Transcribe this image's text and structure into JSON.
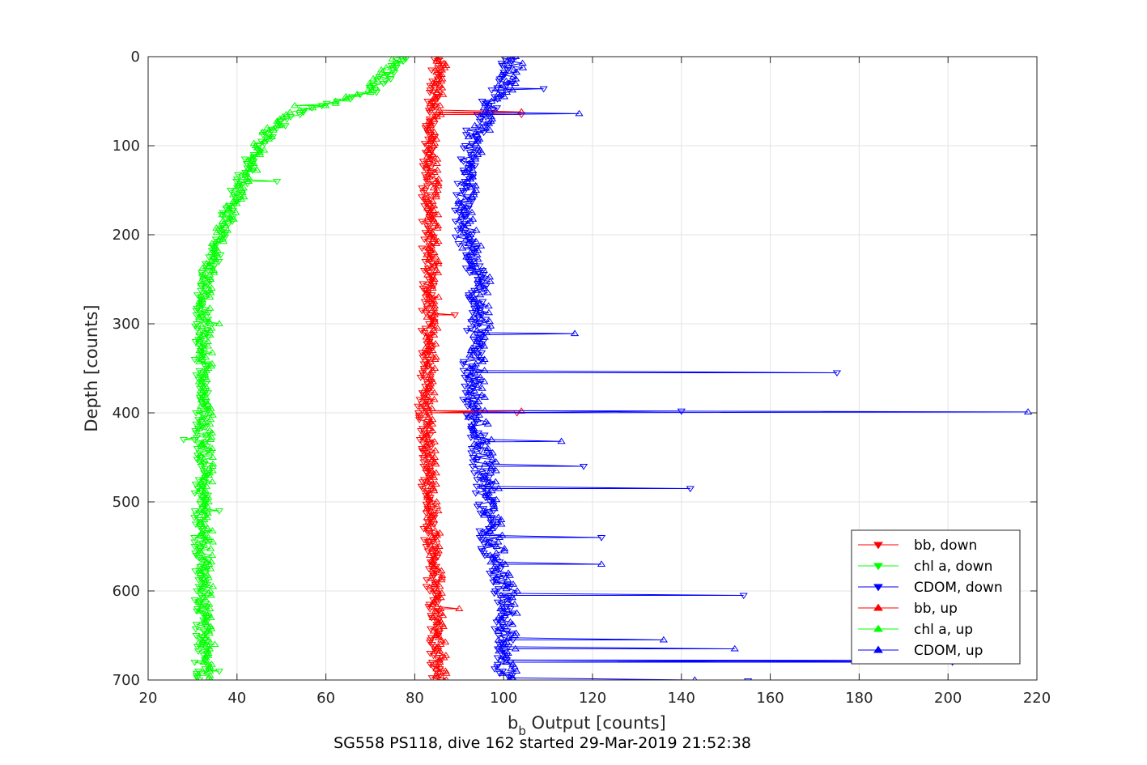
{
  "chart_data": {
    "type": "line",
    "title": "SG558 PS118, dive 162 started 29-Mar-2019 21:52:38",
    "xlabel_main": "b",
    "xlabel_sub": "b",
    "xlabel_rest": " Output [counts]",
    "ylabel": "Depth [counts]",
    "xlim": [
      20,
      220
    ],
    "ylim": [
      0,
      700
    ],
    "y_reversed": true,
    "grid": true,
    "legend_position": "bottom-right",
    "xticks": [
      20,
      40,
      60,
      80,
      100,
      120,
      140,
      160,
      180,
      200,
      220
    ],
    "yticks": [
      0,
      100,
      200,
      300,
      400,
      500,
      600,
      700
    ],
    "series": [
      {
        "name": "bb, down",
        "color": "#ff0000",
        "marker": "triangle-down",
        "profile": [
          [
            0,
            85
          ],
          [
            50,
            84
          ],
          [
            100,
            83
          ],
          [
            150,
            83
          ],
          [
            200,
            83
          ],
          [
            300,
            83
          ],
          [
            400,
            82
          ],
          [
            500,
            83
          ],
          [
            600,
            84
          ],
          [
            700,
            85
          ]
        ],
        "spikes": [
          [
            65,
            104
          ],
          [
            290,
            89
          ],
          [
            400,
            103
          ]
        ]
      },
      {
        "name": "chl a, down",
        "color": "#00ff00",
        "marker": "triangle-down",
        "profile": [
          [
            0,
            78
          ],
          [
            20,
            74
          ],
          [
            40,
            70
          ],
          [
            50,
            62
          ],
          [
            60,
            55
          ],
          [
            80,
            49
          ],
          [
            100,
            44
          ],
          [
            130,
            42
          ],
          [
            160,
            39
          ],
          [
            200,
            37
          ],
          [
            250,
            33
          ],
          [
            300,
            32
          ],
          [
            400,
            32
          ],
          [
            500,
            32
          ],
          [
            600,
            32
          ],
          [
            700,
            32
          ]
        ],
        "spikes": [
          [
            140,
            49
          ],
          [
            430,
            28
          ],
          [
            510,
            36
          ],
          [
            690,
            36
          ]
        ]
      },
      {
        "name": "CDOM, down",
        "color": "#0000ff",
        "marker": "triangle-down",
        "profile": [
          [
            0,
            101
          ],
          [
            30,
            100
          ],
          [
            60,
            96
          ],
          [
            100,
            92
          ],
          [
            150,
            91
          ],
          [
            200,
            91
          ],
          [
            250,
            94
          ],
          [
            300,
            94
          ],
          [
            350,
            93
          ],
          [
            400,
            93
          ],
          [
            450,
            95
          ],
          [
            500,
            96
          ],
          [
            550,
            97
          ],
          [
            600,
            100
          ],
          [
            650,
            100
          ],
          [
            700,
            100
          ]
        ],
        "spikes": [
          [
            36,
            109
          ],
          [
            355,
            175
          ],
          [
            398,
            140
          ],
          [
            460,
            118
          ],
          [
            485,
            142
          ],
          [
            540,
            122
          ],
          [
            605,
            154
          ],
          [
            680,
            201
          ],
          [
            701,
            155
          ]
        ]
      },
      {
        "name": "bb, up",
        "color": "#ff0000",
        "marker": "triangle-up",
        "profile": [
          [
            0,
            86
          ],
          [
            50,
            85
          ],
          [
            100,
            84
          ],
          [
            150,
            84
          ],
          [
            200,
            84
          ],
          [
            300,
            84
          ],
          [
            400,
            83
          ],
          [
            500,
            84
          ],
          [
            600,
            85
          ],
          [
            700,
            86
          ]
        ],
        "spikes": [
          [
            62,
            104
          ],
          [
            398,
            104
          ],
          [
            620,
            90
          ]
        ]
      },
      {
        "name": "chl a, up",
        "color": "#00ff00",
        "marker": "triangle-up",
        "profile": [
          [
            0,
            76
          ],
          [
            20,
            73
          ],
          [
            40,
            69
          ],
          [
            50,
            63
          ],
          [
            60,
            54
          ],
          [
            80,
            48
          ],
          [
            100,
            45
          ],
          [
            130,
            43
          ],
          [
            160,
            40
          ],
          [
            200,
            36
          ],
          [
            250,
            33
          ],
          [
            300,
            33
          ],
          [
            400,
            33
          ],
          [
            500,
            33
          ],
          [
            600,
            33
          ],
          [
            700,
            33
          ]
        ],
        "spikes": [
          [
            55,
            53
          ],
          [
            300,
            36
          ],
          [
            660,
            35
          ]
        ]
      },
      {
        "name": "CDOM, up",
        "color": "#0000ff",
        "marker": "triangle-up",
        "profile": [
          [
            0,
            103
          ],
          [
            30,
            101
          ],
          [
            60,
            97
          ],
          [
            100,
            93
          ],
          [
            150,
            92
          ],
          [
            200,
            92
          ],
          [
            250,
            95
          ],
          [
            300,
            95
          ],
          [
            350,
            94
          ],
          [
            400,
            94
          ],
          [
            450,
            96
          ],
          [
            500,
            97
          ],
          [
            550,
            98
          ],
          [
            600,
            101
          ],
          [
            650,
            101
          ],
          [
            700,
            101
          ]
        ],
        "spikes": [
          [
            64,
            117
          ],
          [
            311,
            116
          ],
          [
            399,
            218
          ],
          [
            432,
            113
          ],
          [
            570,
            122
          ],
          [
            655,
            136
          ],
          [
            665,
            152
          ],
          [
            678,
            200
          ],
          [
            700,
            143
          ]
        ]
      }
    ]
  }
}
